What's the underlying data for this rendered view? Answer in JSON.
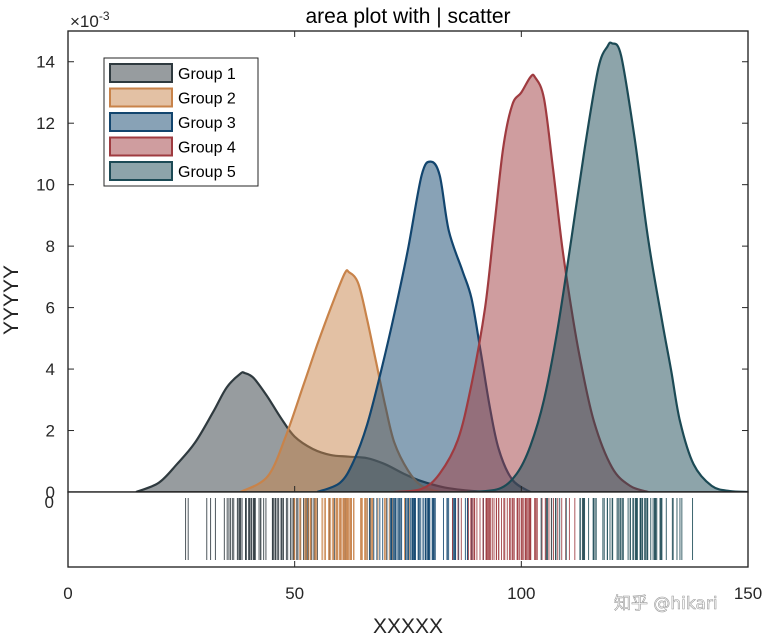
{
  "chart_data": {
    "type": "area",
    "title": "area plot with | scatter",
    "xlabel": "XXXXX",
    "ylabel": "YYYYY",
    "exponent_label": "×10",
    "exponent_power": "-3",
    "xlim": [
      0,
      150
    ],
    "ylim": [
      0,
      15
    ],
    "xticks": [
      "0",
      "50",
      "100",
      "150"
    ],
    "yticks": [
      "0",
      "2",
      "4",
      "6",
      "8",
      "10",
      "12",
      "14"
    ],
    "strip_tick_label": "0",
    "legend_position": "top-left",
    "series": [
      {
        "name": "Group 1",
        "color": "#2f3a3f",
        "fill_opacity": 0.5,
        "x": [
          15,
          20,
          24,
          28,
          32,
          35,
          38,
          39,
          41,
          44,
          47,
          50,
          54,
          58,
          62,
          66,
          70,
          74,
          78,
          83,
          88,
          92
        ],
        "y": [
          0,
          0.3,
          0.9,
          1.6,
          2.6,
          3.4,
          3.85,
          3.87,
          3.7,
          3.1,
          2.4,
          1.8,
          1.4,
          1.2,
          1.15,
          1.1,
          0.9,
          0.6,
          0.35,
          0.15,
          0.05,
          0
        ]
      },
      {
        "name": "Group 2",
        "color": "#c8834a",
        "fill_opacity": 0.5,
        "x": [
          38,
          44,
          48,
          52,
          55,
          58,
          61,
          62,
          64,
          66,
          68,
          70,
          72,
          75,
          78,
          82
        ],
        "y": [
          0,
          0.5,
          1.8,
          3.5,
          4.8,
          6.0,
          7.1,
          7.15,
          6.8,
          5.6,
          4.2,
          2.8,
          1.6,
          0.7,
          0.2,
          0
        ]
      },
      {
        "name": "Group 3",
        "color": "#12456e",
        "fill_opacity": 0.5,
        "x": [
          55,
          60,
          63,
          66,
          69,
          72,
          75,
          78,
          80,
          82,
          84,
          87,
          89,
          91,
          93,
          95,
          98,
          102
        ],
        "y": [
          0,
          0.3,
          1.0,
          2.2,
          3.9,
          5.8,
          7.9,
          10.3,
          10.75,
          10.3,
          8.5,
          7.2,
          6.3,
          4.6,
          2.8,
          1.4,
          0.4,
          0
        ]
      },
      {
        "name": "Group 4",
        "color": "#9f3b40",
        "fill_opacity": 0.5,
        "x": [
          72,
          78,
          82,
          86,
          89,
          92,
          94,
          96,
          98,
          100,
          102,
          103,
          105,
          107,
          109,
          111,
          113,
          116,
          120,
          124,
          128
        ],
        "y": [
          0,
          0.1,
          0.6,
          1.7,
          3.5,
          6.0,
          8.6,
          11.2,
          12.6,
          13.0,
          13.5,
          13.5,
          12.8,
          10.5,
          8.0,
          6.0,
          4.3,
          2.3,
          0.8,
          0.2,
          0
        ]
      },
      {
        "name": "Group 5",
        "color": "#1c4a55",
        "fill_opacity": 0.5,
        "x": [
          88,
          95,
          99,
          102,
          105,
          108,
          111,
          114,
          117,
          119,
          120,
          122,
          125,
          128,
          131,
          133,
          135,
          138,
          142,
          146,
          150
        ],
        "y": [
          0,
          0.1,
          0.6,
          1.5,
          3.0,
          5.3,
          8.2,
          11.2,
          13.8,
          14.5,
          14.6,
          14.2,
          11.5,
          8.2,
          5.6,
          4.0,
          2.3,
          0.9,
          0.2,
          0.03,
          0
        ]
      }
    ],
    "strip_ranges": [
      {
        "group": "Group 1",
        "from": 21,
        "to": 70
      },
      {
        "group": "Group 2",
        "from": 45,
        "to": 80
      },
      {
        "group": "Group 3",
        "from": 62,
        "to": 95
      },
      {
        "group": "Group 4",
        "from": 78,
        "to": 118
      },
      {
        "group": "Group 5",
        "from": 100,
        "to": 145
      }
    ]
  },
  "watermark": "知乎 @hikari"
}
